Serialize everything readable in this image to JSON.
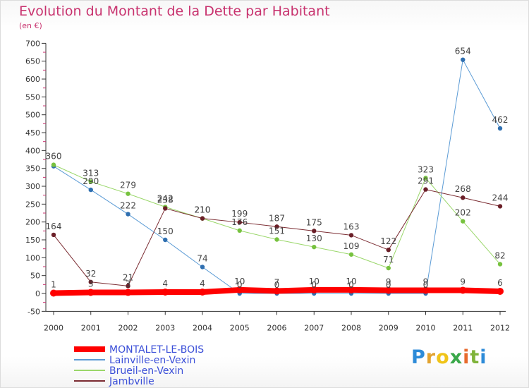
{
  "chart_data": {
    "type": "line",
    "title": "Evolution du Montant de la Dette par Habitant",
    "subtitle": "(en €)",
    "x": [
      "2000",
      "2001",
      "2002",
      "2003",
      "2004",
      "2005",
      "2006",
      "2007",
      "2008",
      "2009",
      "2010",
      "2011",
      "2012"
    ],
    "ylim": [
      -50,
      700
    ],
    "yticks": [
      -50,
      0,
      50,
      100,
      150,
      200,
      250,
      300,
      350,
      400,
      450,
      500,
      550,
      600,
      650,
      700
    ],
    "grid": false,
    "legend_position": "bottom-left",
    "series": [
      {
        "name": "Lainville-en-Vexin",
        "color": "#5b9bd5",
        "marker": "#2f6fb0",
        "width": 1,
        "values": [
          356,
          290,
          222,
          150,
          74,
          0,
          0,
          0,
          0,
          0,
          0,
          654,
          462
        ],
        "labels": [
          null,
          "290",
          "222",
          "150",
          "74",
          "0",
          "0",
          "0",
          "0",
          "0",
          "0",
          "654",
          "462"
        ]
      },
      {
        "name": "Brueil-en-Vexin",
        "color": "#9ad76a",
        "marker": "#77c23f",
        "width": 1,
        "values": [
          360,
          313,
          279,
          242,
          210,
          176,
          151,
          130,
          109,
          71,
          323,
          202,
          82
        ],
        "labels": [
          "360",
          "313",
          "279",
          "242",
          "210",
          "176",
          "151",
          "130",
          "109",
          "71",
          "323",
          "202",
          "82"
        ]
      },
      {
        "name": "Jambville",
        "color": "#7b2c32",
        "marker": "#6b1f28",
        "width": 1,
        "values": [
          164,
          32,
          21,
          238,
          210,
          199,
          187,
          175,
          163,
          122,
          291,
          268,
          244
        ],
        "labels": [
          "164",
          "32",
          "21",
          "238",
          "210",
          "199",
          "187",
          "175",
          "163",
          "122",
          "291",
          "268",
          "244"
        ]
      },
      {
        "name": "MONTALET-LE-BOIS",
        "color": "#ff0000",
        "marker": "#ff0000",
        "width": 8,
        "values": [
          1,
          3,
          3,
          4,
          4,
          10,
          7,
          10,
          10,
          9,
          9,
          9,
          6
        ],
        "labels": [
          "1",
          "3",
          "3",
          "4",
          "4",
          "10",
          "7",
          "10",
          "10",
          "9",
          "9",
          "9",
          "6"
        ]
      }
    ],
    "legend_order": [
      "MONTALET-LE-BOIS",
      "Lainville-en-Vexin",
      "Brueil-en-Vexin",
      "Jambville"
    ]
  },
  "logo_text": "Proxiti"
}
